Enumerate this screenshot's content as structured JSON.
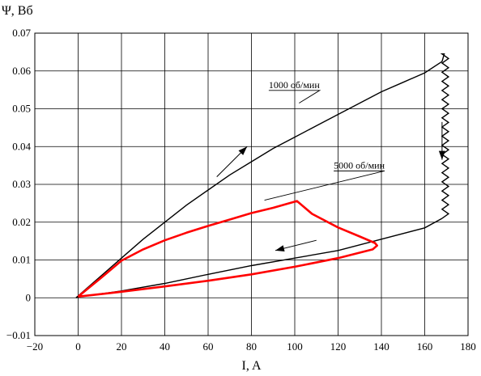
{
  "chart_data": {
    "type": "line",
    "title": "",
    "xlabel": "I, A",
    "ylabel": "Ψ, Вб",
    "xlim": [
      -20,
      180
    ],
    "ylim": [
      -0.01,
      0.07
    ],
    "grid": true,
    "x_ticks": [
      "−20",
      "0",
      "20",
      "40",
      "60",
      "80",
      "100",
      "120",
      "140",
      "160",
      "180"
    ],
    "y_ticks": [
      "−0.01",
      "0",
      "0.01",
      "0.02",
      "0.03",
      "0.04",
      "0.05",
      "0.06",
      "0.07"
    ],
    "colors": {
      "series_1000": "#000000",
      "series_5000": "#ff0000"
    },
    "series": [
      {
        "name": "1000 об/мин",
        "upper": {
          "x": [
            -1,
            10,
            20,
            30,
            40,
            50,
            60,
            70,
            80,
            90,
            100,
            110,
            120,
            130,
            140,
            150,
            160,
            168
          ],
          "y": [
            0,
            0.0055,
            0.0105,
            0.0155,
            0.02,
            0.0245,
            0.0285,
            0.0325,
            0.036,
            0.0395,
            0.0425,
            0.0455,
            0.0485,
            0.0515,
            0.0545,
            0.057,
            0.0595,
            0.0625
          ]
        },
        "lower": {
          "x": [
            168,
            160,
            140,
            120,
            100,
            80,
            60,
            40,
            20,
            0,
            -1
          ],
          "y": [
            0.021,
            0.0185,
            0.0155,
            0.0125,
            0.0105,
            0.0085,
            0.0062,
            0.0038,
            0.0018,
            0.0002,
            0
          ]
        },
        "zigzag": {
          "x_left": 168,
          "x_right": 171,
          "y_top": 0.0645,
          "y_bottom": 0.021,
          "count": 36
        }
      },
      {
        "name": "5000 об/мин",
        "loop": {
          "x": [
            0,
            10,
            20,
            30,
            40,
            50,
            60,
            70,
            80,
            90,
            101,
            108,
            120,
            130,
            137,
            138,
            136,
            120,
            100,
            80,
            60,
            40,
            20,
            0
          ],
          "y": [
            0.0003,
            0.005,
            0.0098,
            0.0128,
            0.0152,
            0.0172,
            0.019,
            0.0207,
            0.0224,
            0.0238,
            0.0256,
            0.0222,
            0.0186,
            0.0162,
            0.0145,
            0.0138,
            0.0128,
            0.0105,
            0.0082,
            0.0062,
            0.0045,
            0.003,
            0.0016,
            0.0003
          ]
        }
      }
    ],
    "annotations": [
      {
        "text": "1000 об/мин",
        "x": 88,
        "y": 0.0555,
        "leader_to": [
          102,
          0.0515
        ]
      },
      {
        "text": "5000 об/мин",
        "x": 118,
        "y": 0.0342,
        "leader_to": [
          86,
          0.0258
        ]
      }
    ],
    "arrows": [
      {
        "from": [
          64,
          0.032
        ],
        "to": [
          78,
          0.04
        ]
      },
      {
        "from": [
          168,
          0.0465
        ],
        "to": [
          168,
          0.0365
        ]
      },
      {
        "from": [
          110,
          0.0152
        ],
        "to": [
          91,
          0.0125
        ]
      }
    ]
  }
}
